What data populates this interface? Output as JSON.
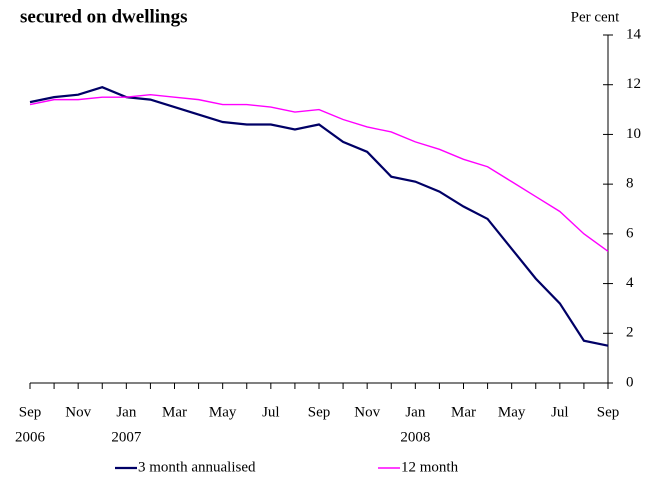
{
  "chart_data": {
    "type": "line",
    "title": "secured on dwellings",
    "y_axis_label": "Per cent",
    "categories": [
      "Sep",
      null,
      "Nov",
      null,
      "Jan",
      null,
      "Mar",
      null,
      "May",
      null,
      "Jul",
      null,
      "Sep",
      null,
      "Nov",
      null,
      "Jan",
      null,
      "Mar",
      null,
      "May",
      null,
      "Jul",
      null,
      "Sep"
    ],
    "category_years": [
      "2006",
      null,
      null,
      null,
      "2007",
      null,
      null,
      null,
      null,
      null,
      null,
      null,
      null,
      null,
      null,
      null,
      "2008",
      null,
      null,
      null,
      null,
      null,
      null,
      null,
      null
    ],
    "series": [
      {
        "name": "3 month annualised",
        "color": "#000066",
        "values": [
          11.3,
          11.5,
          11.6,
          11.9,
          11.5,
          11.4,
          11.1,
          10.8,
          10.5,
          10.4,
          10.4,
          10.2,
          10.4,
          9.7,
          9.3,
          8.3,
          8.1,
          7.7,
          7.1,
          6.6,
          5.4,
          4.2,
          3.2,
          1.7,
          1.5
        ]
      },
      {
        "name": "12 month",
        "color": "#ff00ff",
        "values": [
          11.2,
          11.4,
          11.4,
          11.5,
          11.5,
          11.6,
          11.5,
          11.4,
          11.2,
          11.2,
          11.1,
          10.9,
          11.0,
          10.6,
          10.3,
          10.1,
          9.7,
          9.4,
          9.0,
          8.7,
          8.1,
          7.5,
          6.9,
          6.0,
          5.3
        ]
      }
    ],
    "ylim": [
      0,
      14
    ],
    "yticks": [
      0,
      2,
      4,
      6,
      8,
      10,
      12,
      14
    ],
    "legend": "bottom"
  }
}
